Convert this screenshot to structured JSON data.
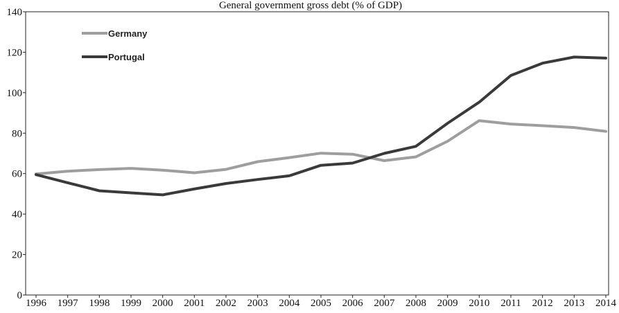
{
  "chart_data": {
    "type": "line",
    "title": "General government gross debt (% of GDP)",
    "xlabel": "",
    "ylabel": "",
    "x": [
      "1996",
      "1997",
      "1998",
      "1999",
      "2000",
      "2001",
      "2002",
      "2003",
      "2004",
      "2005",
      "2006",
      "2007",
      "2008",
      "2009",
      "2010",
      "2011",
      "2012",
      "2013",
      "2014"
    ],
    "ylim": [
      0,
      140
    ],
    "yticks": [
      0,
      20,
      40,
      60,
      80,
      100,
      120,
      140
    ],
    "grid": false,
    "legend_position": "top-left",
    "series": [
      {
        "name": "Germany",
        "color": "#9e9e9e",
        "values": [
          59.8,
          61.2,
          62.0,
          62.6,
          61.7,
          60.4,
          62.1,
          65.9,
          67.9,
          70.1,
          69.6,
          66.4,
          68.3,
          76.0,
          86.2,
          84.5,
          83.7,
          82.8,
          80.9
        ]
      },
      {
        "name": "Portugal",
        "color": "#3a3a3a",
        "values": [
          59.5,
          55.5,
          51.5,
          50.5,
          49.5,
          52.4,
          55.1,
          57.1,
          58.9,
          64.1,
          65.2,
          70.0,
          73.5,
          84.9,
          95.3,
          108.5,
          114.6,
          117.6,
          117.1
        ]
      }
    ]
  }
}
